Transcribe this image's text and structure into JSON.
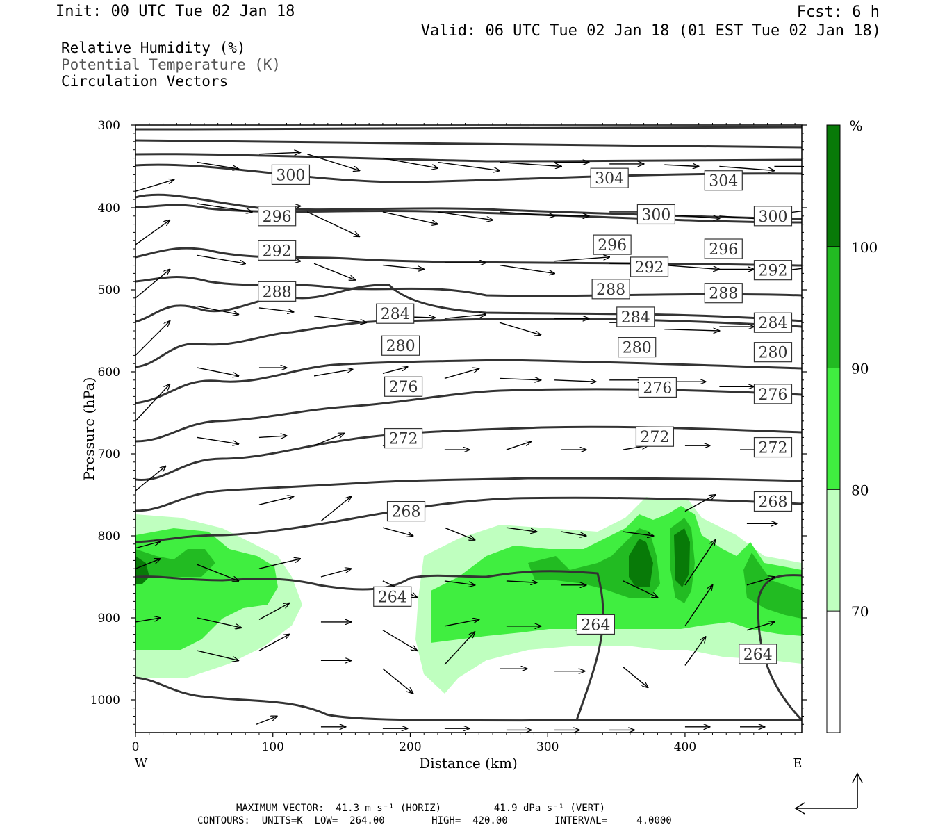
{
  "header": {
    "init": "Init: 00 UTC Tue 02 Jan 18",
    "fcst": "Fcst:    6 h",
    "valid": "Valid: 06 UTC Tue 02 Jan 18 (01 EST Tue 02 Jan 18)"
  },
  "legend": {
    "rh": "Relative Humidity (%)",
    "theta": "Potential Temperature (K)",
    "vectors": "Circulation Vectors"
  },
  "footer": {
    "line1": "MAXIMUM VECTOR:  41.3 m s⁻¹ (HORIZ)         41.9 dPa s⁻¹ (VERT)",
    "line2": "CONTOURS:  UNITS=K  LOW=  264.00        HIGH=  420.00        INTERVAL=     4.0000"
  },
  "colorbar": {
    "unit": "%",
    "levels": [
      70,
      80,
      90,
      100
    ],
    "colors": [
      "#ffffff",
      "#bfffbf",
      "#40ee40",
      "#22bb22",
      "#087a08"
    ]
  },
  "chart_data": {
    "type": "cross-section",
    "xlabel": "Distance (km)",
    "ylabel": "Pressure (hPa)",
    "x_ticks": [
      0,
      100,
      200,
      300,
      400
    ],
    "y_ticks": [
      300,
      400,
      500,
      600,
      700,
      800,
      900,
      1000
    ],
    "xlim": [
      0,
      485
    ],
    "ylim": [
      1040,
      300
    ],
    "y_scale": "pressure (log-like, inverted)",
    "x_end_labels": {
      "left": "W",
      "right": "E"
    },
    "theta_contours_K": [
      264,
      268,
      272,
      276,
      280,
      284,
      288,
      292,
      296,
      300,
      304
    ],
    "theta_labels": [
      {
        "value": "300",
        "x": 113,
        "p": 360
      },
      {
        "value": "304",
        "x": 345,
        "p": 364
      },
      {
        "value": "304",
        "x": 428,
        "p": 367
      },
      {
        "value": "296",
        "x": 103,
        "p": 410
      },
      {
        "value": "300",
        "x": 379,
        "p": 408
      },
      {
        "value": "300",
        "x": 464,
        "p": 410
      },
      {
        "value": "292",
        "x": 103,
        "p": 452
      },
      {
        "value": "296",
        "x": 347,
        "p": 445
      },
      {
        "value": "296",
        "x": 428,
        "p": 450
      },
      {
        "value": "292",
        "x": 374,
        "p": 472
      },
      {
        "value": "292",
        "x": 464,
        "p": 476
      },
      {
        "value": "288",
        "x": 103,
        "p": 502
      },
      {
        "value": "288",
        "x": 346,
        "p": 499
      },
      {
        "value": "288",
        "x": 428,
        "p": 504
      },
      {
        "value": "284",
        "x": 189,
        "p": 529
      },
      {
        "value": "284",
        "x": 364,
        "p": 533
      },
      {
        "value": "284",
        "x": 464,
        "p": 540
      },
      {
        "value": "280",
        "x": 193,
        "p": 568
      },
      {
        "value": "280",
        "x": 365,
        "p": 570
      },
      {
        "value": "280",
        "x": 464,
        "p": 576
      },
      {
        "value": "276",
        "x": 195,
        "p": 618
      },
      {
        "value": "276",
        "x": 380,
        "p": 619
      },
      {
        "value": "276",
        "x": 464,
        "p": 627
      },
      {
        "value": "272",
        "x": 195,
        "p": 681
      },
      {
        "value": "272",
        "x": 378,
        "p": 679
      },
      {
        "value": "272",
        "x": 464,
        "p": 692
      },
      {
        "value": "268",
        "x": 197,
        "p": 770
      },
      {
        "value": "268",
        "x": 464,
        "p": 758
      },
      {
        "value": "264",
        "x": 187,
        "p": 874
      },
      {
        "value": "264",
        "x": 335,
        "p": 908
      },
      {
        "value": "264",
        "x": 453,
        "p": 944
      }
    ],
    "rh_shading_levels": [
      70,
      80,
      90,
      100
    ]
  }
}
